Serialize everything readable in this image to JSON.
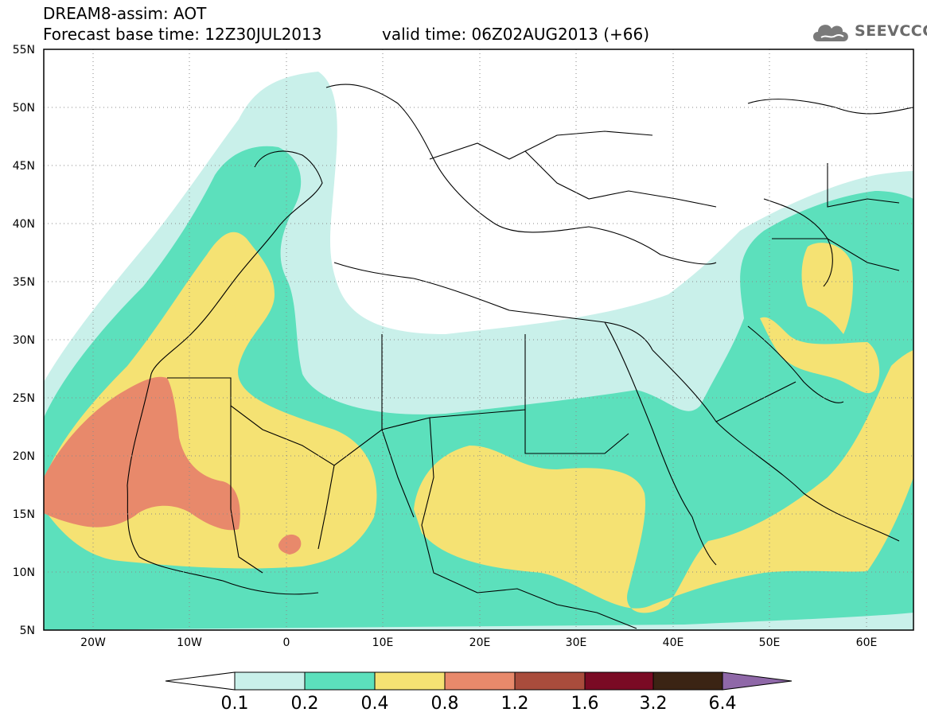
{
  "header": {
    "title": "DREAM8-assim: AOT",
    "base_time": "Forecast base time: 12Z30JUL2013",
    "valid_time": "valid time: 06Z02AUG2013 (+66)"
  },
  "logo": {
    "icon": "cloud-icon",
    "text": "SEEVCCC"
  },
  "map": {
    "lat_ticks": [
      "55N",
      "50N",
      "45N",
      "40N",
      "35N",
      "30N",
      "25N",
      "20N",
      "15N",
      "10N",
      "5N"
    ],
    "lon_ticks": [
      "20W",
      "10W",
      "0",
      "10E",
      "20E",
      "30E",
      "40E",
      "50E",
      "60E"
    ]
  },
  "colorbar": {
    "labels": [
      "0.1",
      "0.2",
      "0.4",
      "0.8",
      "1.2",
      "1.6",
      "3.2",
      "6.4"
    ],
    "colors": [
      "#ffffff",
      "#c9f0ea",
      "#5ce0bc",
      "#f5e273",
      "#e8896b",
      "#a94c3c",
      "#7a0a24",
      "#3b2414",
      "#8f68a8"
    ]
  }
}
